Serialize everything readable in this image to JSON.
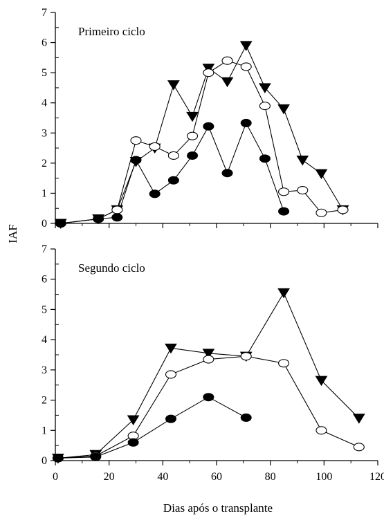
{
  "chart_data": {
    "type": "line",
    "ylabel": "IAF",
    "xlabel": "Dias após o transplante",
    "x_ticks": [
      "0",
      "20",
      "40",
      "60",
      "80",
      "100",
      "120"
    ],
    "xlim": [
      0,
      120
    ],
    "ylim": [
      0,
      7
    ],
    "y_ticks": [
      "0",
      "1",
      "2",
      "3",
      "4",
      "5",
      "6",
      "7"
    ],
    "grid": false,
    "legend": "none",
    "panels": [
      {
        "title": "Primeiro ciclo",
        "series": [
          {
            "marker": "triangle-down-filled",
            "x": [
              2,
              16,
              23,
              30,
              37,
              44,
              51,
              57,
              64,
              71,
              78,
              85,
              92,
              99,
              107
            ],
            "y": [
              0.0,
              0.15,
              0.45,
              2.05,
              2.5,
              4.6,
              3.55,
              5.15,
              4.7,
              5.9,
              4.5,
              3.8,
              2.1,
              1.65,
              0.45
            ]
          },
          {
            "marker": "circle-open",
            "x": [
              2,
              16,
              23,
              30,
              37,
              44,
              51,
              57,
              64,
              71,
              78,
              85,
              92,
              99,
              107
            ],
            "y": [
              0.0,
              0.15,
              0.45,
              2.75,
              2.55,
              2.25,
              2.9,
              5.0,
              5.4,
              5.2,
              3.9,
              1.05,
              1.1,
              0.35,
              0.45
            ]
          },
          {
            "marker": "circle-filled",
            "x": [
              2,
              16,
              23,
              30,
              37,
              44,
              51,
              57,
              64,
              71,
              78,
              85
            ],
            "y": [
              0.0,
              0.15,
              0.2,
              2.1,
              0.98,
              1.43,
              2.25,
              3.22,
              1.67,
              3.33,
              2.15,
              0.4
            ]
          }
        ]
      },
      {
        "title": "Segundo ciclo",
        "series": [
          {
            "marker": "triangle-down-filled",
            "x": [
              1,
              15,
              29,
              43,
              57,
              71,
              85,
              99,
              113
            ],
            "y": [
              0.08,
              0.2,
              1.35,
              3.72,
              3.55,
              3.45,
              5.55,
              2.65,
              1.4
            ]
          },
          {
            "marker": "circle-open",
            "x": [
              1,
              15,
              29,
              43,
              57,
              71,
              85,
              99,
              113
            ],
            "y": [
              0.08,
              0.15,
              0.82,
              2.85,
              3.35,
              3.45,
              3.22,
              1.0,
              0.45
            ]
          },
          {
            "marker": "circle-filled",
            "x": [
              1,
              15,
              29,
              43,
              57,
              71
            ],
            "y": [
              0.08,
              0.12,
              0.6,
              1.38,
              2.1,
              1.42
            ]
          }
        ]
      }
    ]
  }
}
